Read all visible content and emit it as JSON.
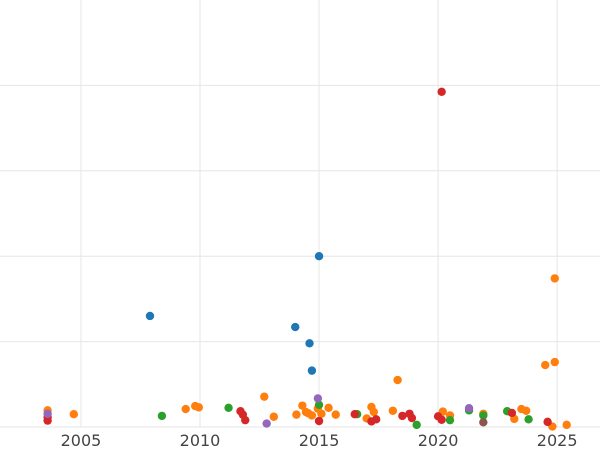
{
  "chart_data": {
    "type": "scatter",
    "title": "",
    "xlabel": "",
    "ylabel": "",
    "xlim": [
      2001.6,
      2026.8
    ],
    "ylim": [
      0,
      100
    ],
    "x_ticks": [
      2005,
      2010,
      2015,
      2020,
      2025
    ],
    "x_tick_labels": [
      "2005",
      "2010",
      "2015",
      "2020",
      "2025"
    ],
    "y_gridlines": [
      0,
      20,
      40,
      60,
      80
    ],
    "grid": true,
    "legend": "none",
    "series": [
      {
        "color": "#1f77b4",
        "points": [
          [
            2007.9,
            26.0
          ],
          [
            2014.0,
            23.4
          ],
          [
            2014.6,
            19.6
          ],
          [
            2014.7,
            13.2
          ],
          [
            2015.0,
            40.0
          ]
        ]
      },
      {
        "color": "#ff7f0e",
        "points": [
          [
            2003.6,
            3.9
          ],
          [
            2004.7,
            3.0
          ],
          [
            2009.4,
            4.2
          ],
          [
            2009.8,
            4.9
          ],
          [
            2009.95,
            4.6
          ],
          [
            2012.7,
            7.1
          ],
          [
            2013.1,
            2.4
          ],
          [
            2014.05,
            2.9
          ],
          [
            2014.3,
            5.0
          ],
          [
            2014.45,
            3.5
          ],
          [
            2014.55,
            3.2
          ],
          [
            2014.7,
            2.7
          ],
          [
            2014.95,
            4.3
          ],
          [
            2015.1,
            3.1
          ],
          [
            2015.4,
            4.5
          ],
          [
            2015.7,
            2.9
          ],
          [
            2017.0,
            2.0
          ],
          [
            2017.2,
            4.7
          ],
          [
            2017.3,
            3.5
          ],
          [
            2018.1,
            3.8
          ],
          [
            2018.3,
            11.0
          ],
          [
            2020.2,
            3.6
          ],
          [
            2020.5,
            2.7
          ],
          [
            2021.9,
            3.1
          ],
          [
            2023.2,
            1.9
          ],
          [
            2023.5,
            4.2
          ],
          [
            2023.7,
            3.8
          ],
          [
            2024.5,
            14.5
          ],
          [
            2024.8,
            0.1
          ],
          [
            2024.9,
            15.2
          ],
          [
            2024.9,
            34.8
          ],
          [
            2025.4,
            0.5
          ]
        ]
      },
      {
        "color": "#2ca02c",
        "points": [
          [
            2008.4,
            2.6
          ],
          [
            2011.2,
            4.5
          ],
          [
            2015.0,
            5.2
          ],
          [
            2016.6,
            3.0
          ],
          [
            2019.1,
            0.5
          ],
          [
            2020.5,
            1.6
          ],
          [
            2021.3,
            3.9
          ],
          [
            2021.9,
            2.7
          ],
          [
            2022.9,
            3.7
          ],
          [
            2023.8,
            1.8
          ]
        ]
      },
      {
        "color": "#d62728",
        "points": [
          [
            2003.6,
            2.3
          ],
          [
            2003.6,
            1.5
          ],
          [
            2011.7,
            3.7
          ],
          [
            2011.8,
            2.9
          ],
          [
            2011.9,
            1.6
          ],
          [
            2015.0,
            1.4
          ],
          [
            2016.5,
            3.0
          ],
          [
            2017.2,
            1.3
          ],
          [
            2017.4,
            1.8
          ],
          [
            2018.5,
            2.6
          ],
          [
            2018.8,
            3.1
          ],
          [
            2018.9,
            2.1
          ],
          [
            2020.0,
            2.5
          ],
          [
            2020.15,
            1.7
          ],
          [
            2020.15,
            78.5
          ],
          [
            2023.1,
            3.3
          ],
          [
            2024.6,
            1.2
          ]
        ]
      },
      {
        "color": "#9467bd",
        "points": [
          [
            2003.6,
            3.1
          ],
          [
            2012.8,
            0.8
          ],
          [
            2014.95,
            6.7
          ],
          [
            2021.3,
            4.4
          ]
        ]
      },
      {
        "color": "#8c564b",
        "points": [
          [
            2021.9,
            1.1
          ]
        ]
      }
    ]
  }
}
